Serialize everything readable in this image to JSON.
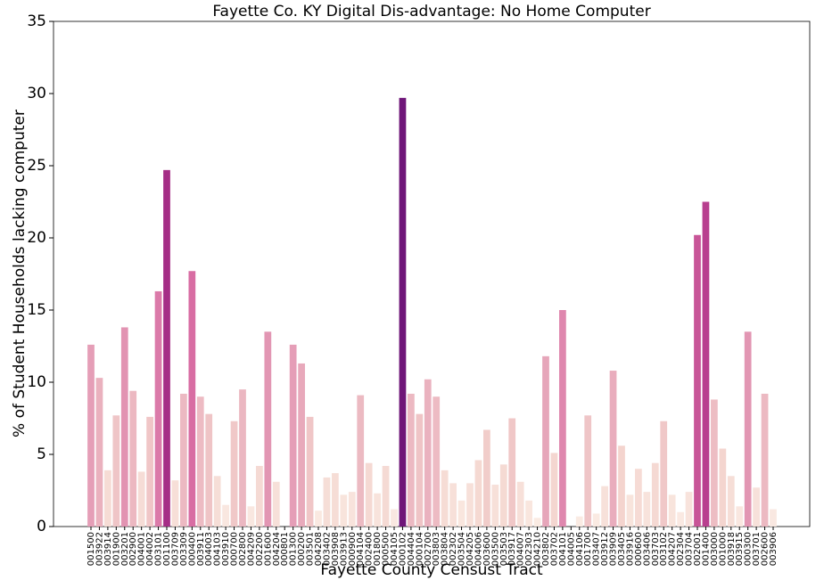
{
  "chart_data": {
    "type": "bar",
    "title": "Fayette Co. KY Digital Dis-advantage: No Home Computer",
    "xlabel": "Fayette County Censust Tract",
    "ylabel": "% of Student Households lacking computer",
    "categories": [
      "001500",
      "003922",
      "003914",
      "001900",
      "003201",
      "002900",
      "004001",
      "004002",
      "003101",
      "001100",
      "003709",
      "003309",
      "000400",
      "003911",
      "004003",
      "004103",
      "003910",
      "000700",
      "002800",
      "004209",
      "002200",
      "001600",
      "004204",
      "000801",
      "001300",
      "000200",
      "003501",
      "004208",
      "003402",
      "003908",
      "003913",
      "000900",
      "004104",
      "002400",
      "001800",
      "000500",
      "004105",
      "000102",
      "004404",
      "000104",
      "002700",
      "003803",
      "003804",
      "002302",
      "003504",
      "004205",
      "004006",
      "003600",
      "003500",
      "003503",
      "003917",
      "004007",
      "002303",
      "004210",
      "003802",
      "003702",
      "004101",
      "004005",
      "004106",
      "001700",
      "003407",
      "003912",
      "003909",
      "003405",
      "003916",
      "000600",
      "003406",
      "003703",
      "003102",
      "004207",
      "002304",
      "003704",
      "002001",
      "001400",
      "003000",
      "001000",
      "003918",
      "003915",
      "000300",
      "003701",
      "002600",
      "003906"
    ],
    "values": [
      12.6,
      10.3,
      3.9,
      7.7,
      13.8,
      9.4,
      3.8,
      7.6,
      16.3,
      24.7,
      3.2,
      9.2,
      17.7,
      9.0,
      7.8,
      3.5,
      1.5,
      7.3,
      9.5,
      1.4,
      4.2,
      13.5,
      3.1,
      0,
      12.6,
      11.3,
      7.6,
      1.1,
      3.4,
      3.7,
      2.2,
      2.4,
      9.1,
      4.4,
      2.3,
      4.2,
      1.2,
      29.7,
      9.2,
      7.8,
      10.2,
      9.0,
      3.9,
      3.0,
      1.8,
      3.0,
      4.6,
      6.7,
      2.9,
      4.3,
      7.5,
      3.1,
      1.8,
      0.6,
      11.8,
      5.1,
      15.0,
      0,
      0.7,
      7.7,
      0.9,
      2.8,
      10.8,
      5.6,
      2.2,
      4.0,
      2.4,
      4.4,
      7.3,
      2.2,
      1.0,
      2.4,
      20.2,
      22.5,
      8.8,
      5.4,
      3.5,
      1.4,
      13.5,
      2.7,
      9.2,
      1.2
    ],
    "colormap": [
      "#fbeee6",
      "#f3d2cc",
      "#e6a4b9",
      "#d76aa2",
      "#ad3088",
      "#6c1578"
    ],
    "clim": [
      0,
      30
    ],
    "ylim": [
      0,
      35
    ],
    "yticks": [
      0,
      5,
      10,
      15,
      20,
      25,
      30,
      35
    ]
  }
}
